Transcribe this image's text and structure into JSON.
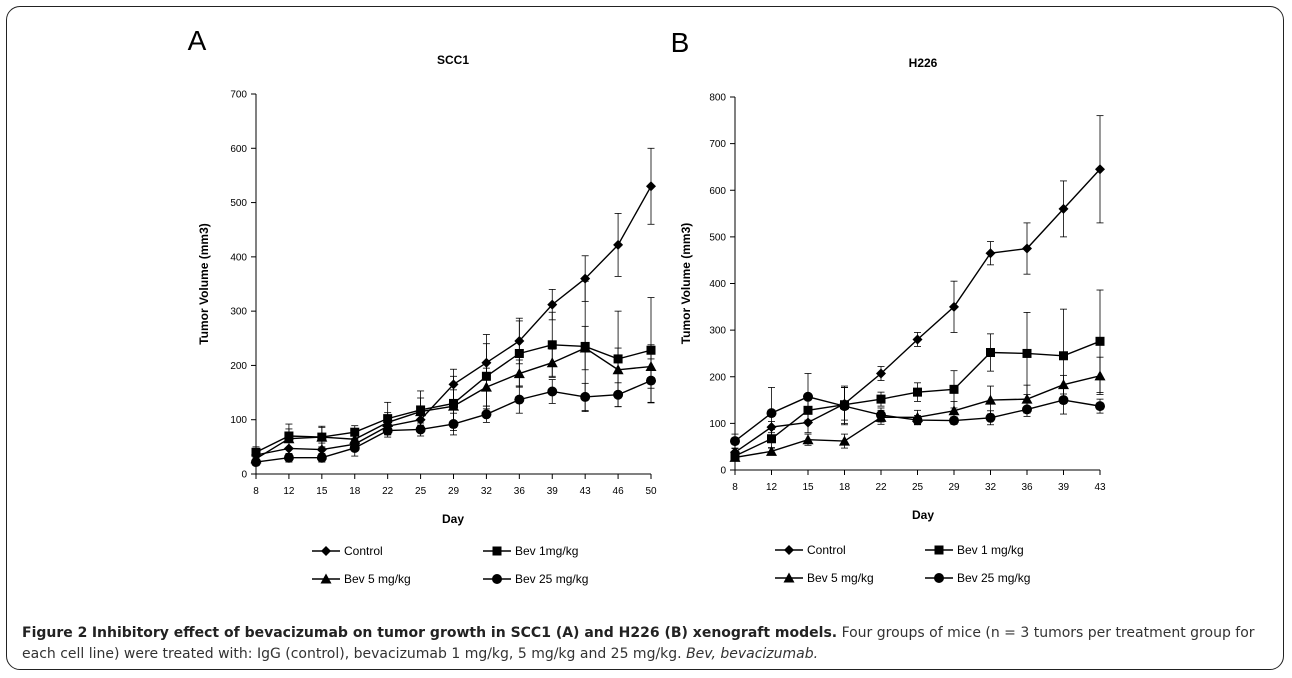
{
  "chart_data": [
    {
      "type": "line",
      "panel_label": "A",
      "title": "SCC1",
      "xlabel": "Day",
      "ylabel": "Tumor Volume (mm3)",
      "categories": [
        "8",
        "12",
        "15",
        "18",
        "22",
        "25",
        "29",
        "32",
        "36",
        "39",
        "43",
        "46",
        "50"
      ],
      "ylim": [
        0,
        700
      ],
      "yticks": [
        "0",
        "100",
        "200",
        "300",
        "400",
        "500",
        "600",
        "700"
      ],
      "grid": false,
      "legend_position": "bottom",
      "series": [
        {
          "name": "Control",
          "marker": "diamond",
          "values": [
            35,
            47,
            45,
            55,
            88,
            100,
            165,
            205,
            245,
            312,
            360,
            422,
            530
          ],
          "errors": [
            10,
            12,
            12,
            10,
            15,
            18,
            28,
            52,
            42,
            28,
            42,
            58,
            70
          ]
        },
        {
          "name": "Bev 1mg/kg",
          "marker": "square",
          "values": [
            40,
            70,
            68,
            77,
            102,
            118,
            130,
            180,
            222,
            238,
            235,
            212,
            228
          ],
          "errors": [
            10,
            22,
            20,
            12,
            30,
            35,
            50,
            60,
            60,
            60,
            120,
            88,
            97
          ]
        },
        {
          "name": "Bev 5 mg/kg",
          "marker": "triangle",
          "values": [
            28,
            65,
            68,
            64,
            95,
            115,
            125,
            160,
            185,
            205,
            232,
            192,
            198
          ],
          "errors": [
            8,
            18,
            18,
            15,
            18,
            25,
            30,
            35,
            25,
            25,
            40,
            40,
            40
          ]
        },
        {
          "name": "Bev 25 mg/kg",
          "marker": "circle",
          "values": [
            22,
            30,
            30,
            48,
            80,
            82,
            92,
            110,
            137,
            152,
            142,
            146,
            172
          ],
          "errors": [
            6,
            8,
            8,
            15,
            12,
            12,
            20,
            15,
            25,
            22,
            25,
            22,
            40
          ]
        }
      ]
    },
    {
      "type": "line",
      "panel_label": "B",
      "title": "H226",
      "xlabel": "Day",
      "ylabel": "Tumor Volume (mm3)",
      "categories": [
        "8",
        "12",
        "15",
        "18",
        "22",
        "25",
        "29",
        "32",
        "36",
        "39",
        "43"
      ],
      "ylim": [
        0,
        800
      ],
      "yticks": [
        "0",
        "100",
        "200",
        "300",
        "400",
        "500",
        "600",
        "700",
        "800"
      ],
      "grid": false,
      "legend_position": "bottom",
      "series": [
        {
          "name": "Control",
          "marker": "diamond",
          "values": [
            38,
            92,
            102,
            142,
            207,
            280,
            350,
            465,
            475,
            560,
            645
          ],
          "errors": [
            8,
            12,
            22,
            35,
            15,
            15,
            55,
            25,
            55,
            60,
            115
          ]
        },
        {
          "name": "Bev 1 mg/kg",
          "marker": "square",
          "values": [
            30,
            67,
            128,
            140,
            152,
            167,
            173,
            252,
            250,
            245,
            276
          ],
          "errors": [
            8,
            20,
            25,
            40,
            15,
            20,
            40,
            40,
            88,
            100,
            110
          ]
        },
        {
          "name": "Bev 5 mg/kg",
          "marker": "triangle",
          "values": [
            27,
            40,
            65,
            62,
            113,
            113,
            127,
            150,
            152,
            183,
            202
          ],
          "errors": [
            6,
            8,
            12,
            15,
            15,
            15,
            20,
            30,
            30,
            20,
            40
          ]
        },
        {
          "name": "Bev 25 mg/kg",
          "marker": "circle",
          "values": [
            62,
            122,
            157,
            137,
            118,
            107,
            106,
            112,
            130,
            150,
            137
          ],
          "errors": [
            15,
            55,
            50,
            40,
            15,
            10,
            8,
            15,
            15,
            30,
            15
          ]
        }
      ]
    }
  ],
  "caption": {
    "figure_label": "Figure 2",
    "title": "Inhibitory effect of bevacizumab on tumor growth in SCC1 (A) and H226 (B) xenograft models.",
    "body": "Four groups of mice (n = 3 tumors per treatment group for each cell line) were treated with: IgG (control), bevacizumab 1 mg/kg, 5 mg/kg and 25 mg/kg.",
    "abbreviation": "Bev, bevacizumab."
  }
}
